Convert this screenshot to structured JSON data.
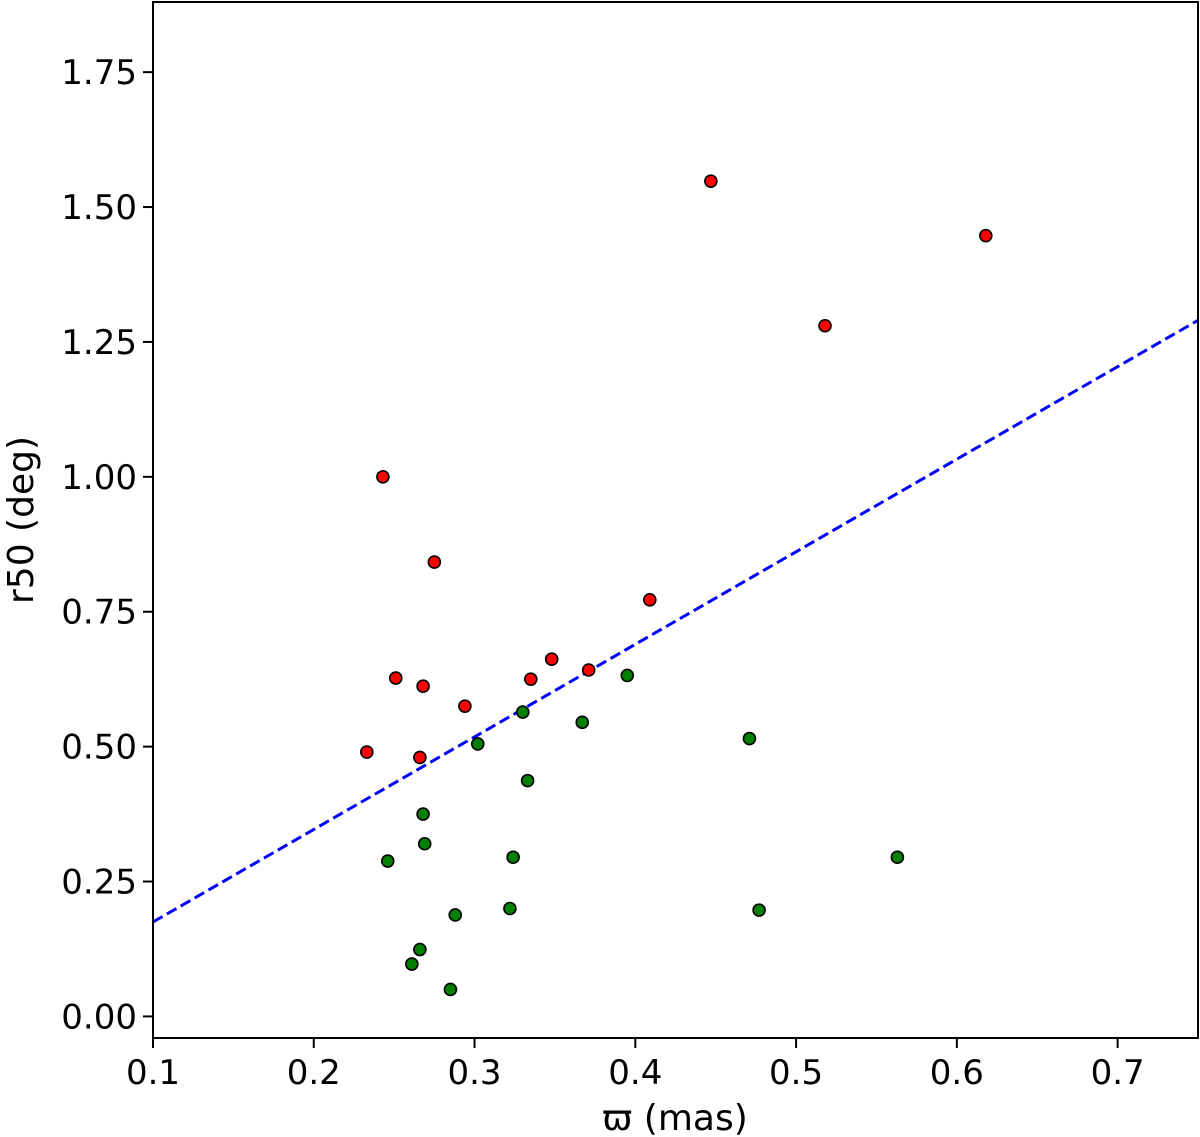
{
  "chart_data": {
    "type": "scatter",
    "title": "",
    "xlabel": "ϖ (mas)",
    "ylabel": "r50 (deg)",
    "xlim": [
      0.1,
      0.75
    ],
    "ylim": [
      -0.04,
      1.88
    ],
    "xticks": [
      "0.1",
      "0.2",
      "0.3",
      "0.4",
      "0.5",
      "0.6",
      "0.7"
    ],
    "yticks": [
      "0.00",
      "0.25",
      "0.50",
      "0.75",
      "1.00",
      "1.25",
      "1.50",
      "1.75"
    ],
    "grid": false,
    "series": [
      {
        "color": "#ff0000",
        "points": [
          [
            0.233,
            0.49
          ],
          [
            0.243,
            1.0
          ],
          [
            0.251,
            0.627
          ],
          [
            0.266,
            0.48
          ],
          [
            0.268,
            0.612
          ],
          [
            0.275,
            0.842
          ],
          [
            0.294,
            0.575
          ],
          [
            0.335,
            0.625
          ],
          [
            0.348,
            0.662
          ],
          [
            0.371,
            0.642
          ],
          [
            0.409,
            0.772
          ],
          [
            0.447,
            1.548
          ],
          [
            0.518,
            1.28
          ],
          [
            0.618,
            1.447
          ]
        ]
      },
      {
        "color": "#008000",
        "points": [
          [
            0.246,
            0.288
          ],
          [
            0.261,
            0.097
          ],
          [
            0.266,
            0.124
          ],
          [
            0.268,
            0.375
          ],
          [
            0.269,
            0.32
          ],
          [
            0.285,
            0.05
          ],
          [
            0.288,
            0.188
          ],
          [
            0.302,
            0.505
          ],
          [
            0.322,
            0.2
          ],
          [
            0.324,
            0.295
          ],
          [
            0.33,
            0.564
          ],
          [
            0.333,
            0.437
          ],
          [
            0.367,
            0.545
          ],
          [
            0.395,
            0.632
          ],
          [
            0.471,
            0.515
          ],
          [
            0.477,
            0.197
          ],
          [
            0.563,
            0.295
          ]
        ]
      }
    ],
    "fit_line": {
      "color": "#0000ff",
      "style": "dashed",
      "points": [
        [
          0.1,
          0.175
        ],
        [
          0.75,
          1.29
        ]
      ]
    }
  }
}
